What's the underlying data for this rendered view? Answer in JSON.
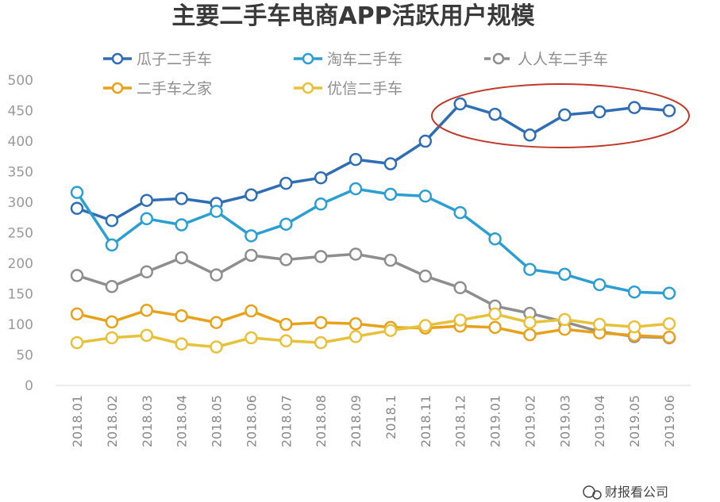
{
  "chart_data": {
    "type": "line",
    "title": "主要二手车电商APP活跃用户规模",
    "categories": [
      "2018.01",
      "2018.02",
      "2018.03",
      "2018.04",
      "2018.05",
      "2018.06",
      "2018.07",
      "2018.08",
      "2018.09",
      "2018.1",
      "2018.11",
      "2018.12",
      "2019.01",
      "2019.02",
      "2019.03",
      "2019.04",
      "2019.05",
      "2019.06"
    ],
    "ylim": [
      0,
      500
    ],
    "yticks": [
      0,
      50,
      100,
      150,
      200,
      250,
      300,
      350,
      400,
      450,
      500
    ],
    "grid": false,
    "legend_position": "top",
    "series": [
      {
        "name": "瓜子二手车",
        "color": "#2f6db5",
        "values": [
          290,
          270,
          303,
          306,
          298,
          312,
          331,
          340,
          370,
          363,
          400,
          461,
          444,
          410,
          443,
          448,
          455,
          450
        ]
      },
      {
        "name": "淘车二手车",
        "color": "#2c9fd2",
        "values": [
          316,
          230,
          273,
          263,
          285,
          245,
          264,
          297,
          322,
          313,
          310,
          283,
          240,
          190,
          182,
          165,
          153,
          151
        ]
      },
      {
        "name": "人人车二手车",
        "color": "#8e8e8e",
        "values": [
          180,
          162,
          186,
          209,
          181,
          213,
          206,
          211,
          215,
          205,
          179,
          160,
          130,
          118,
          104,
          88,
          80,
          78
        ]
      },
      {
        "name": "二手车之家",
        "color": "#e8a11a",
        "values": [
          117,
          104,
          123,
          114,
          103,
          122,
          100,
          103,
          101,
          95,
          94,
          97,
          95,
          83,
          92,
          86,
          82,
          79
        ]
      },
      {
        "name": "优信二手车",
        "color": "#e8c13a",
        "values": [
          70,
          78,
          82,
          68,
          63,
          78,
          73,
          70,
          80,
          90,
          98,
          107,
          117,
          103,
          108,
          100,
          96,
          101
        ]
      }
    ]
  },
  "watermark": "财报看公司"
}
